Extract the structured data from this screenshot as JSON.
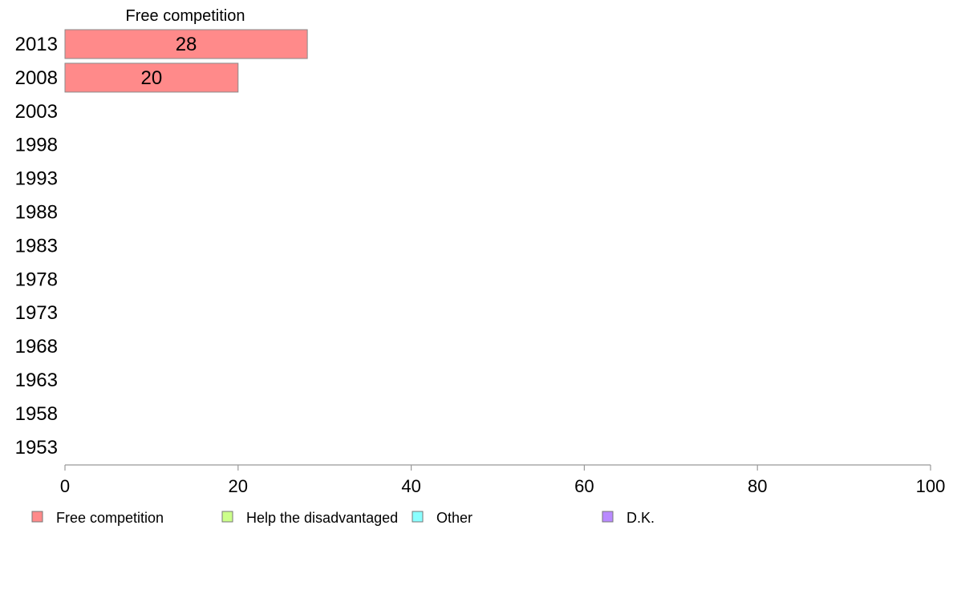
{
  "chart_data": {
    "type": "bar",
    "orientation": "horizontal",
    "stacked": true,
    "title": "",
    "categories": [
      "2013",
      "2008",
      "2003",
      "1998",
      "1993",
      "1988",
      "1983",
      "1978",
      "1973",
      "1968",
      "1963",
      "1958",
      "1953"
    ],
    "series": [
      {
        "name": "Free competition",
        "color": "#FF8A8A",
        "values": [
          28,
          20,
          null,
          null,
          null,
          null,
          null,
          null,
          null,
          null,
          null,
          null,
          null
        ],
        "labels": [
          "28",
          "20",
          "",
          "",
          "",
          "",
          "",
          "",
          "",
          "",
          "",
          "",
          ""
        ]
      },
      {
        "name": "Help the disadvantaged",
        "color": "#CCFF8A",
        "values": [
          null,
          null,
          null,
          null,
          null,
          null,
          null,
          null,
          null,
          null,
          null,
          null,
          null
        ]
      },
      {
        "name": "Other",
        "color": "#8AFFFF",
        "values": [
          null,
          null,
          null,
          null,
          null,
          null,
          null,
          null,
          null,
          null,
          null,
          null,
          null
        ]
      },
      {
        "name": "D.K.",
        "color": "#B98AFF",
        "values": [
          null,
          null,
          null,
          null,
          null,
          null,
          null,
          null,
          null,
          null,
          null,
          null,
          null
        ]
      }
    ],
    "segment_header": "Free competition",
    "xlim": [
      0,
      100
    ],
    "xticks": [
      0,
      20,
      40,
      60,
      80,
      100
    ],
    "xtick_labels": [
      "0",
      "20",
      "40",
      "60",
      "80",
      "100"
    ],
    "grid": false,
    "legend_position": "bottom"
  }
}
